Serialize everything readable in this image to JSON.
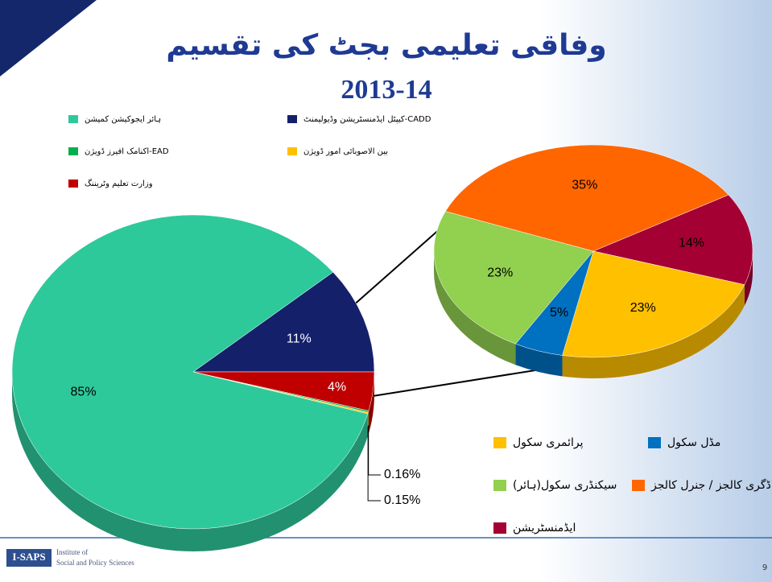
{
  "chart_data": [
    {
      "type": "pie",
      "title": "وفاقی تعلیمی بجٹ کی تقسیم",
      "subtitle": "2013-14",
      "categories": [
        "کیپٹل ایڈمنسٹریشن وڈیولپمنٹ-CADD",
        "وزارت تعلیم وٹریننگ",
        "اکنامک افیرز ڈویژن-EAD",
        "بین الاصوبائی امور ڈویژن",
        "ہائر ایجوکیشن کمیشن"
      ],
      "values": [
        11,
        4,
        0.16,
        0.15,
        85
      ],
      "value_labels": [
        "11%",
        "4%",
        "0.16%",
        "0.15%",
        "85%"
      ],
      "colors": [
        "#15206b",
        "#c00000",
        "#00b050",
        "#ffc000",
        "#2ec99a"
      ]
    },
    {
      "type": "pie",
      "categories": [
        "ایڈمنسٹریشن",
        "پرائمری سکول",
        "مڈل سکول",
        "سیکنڈری سکول(ہائر)",
        "ڈگری کالجز / جنرل کالجز"
      ],
      "values": [
        14,
        23,
        5,
        23,
        35
      ],
      "value_labels": [
        "14%",
        "23%",
        "5%",
        "23%",
        "35%"
      ],
      "colors": [
        "#a50034",
        "#ffc000",
        "#0070c0",
        "#92d050",
        "#ff6600"
      ]
    }
  ],
  "footer": {
    "logo": "I-SAPS",
    "org_line1": "Institute of",
    "org_line2": "Social and Policy Sciences",
    "page": "9"
  }
}
